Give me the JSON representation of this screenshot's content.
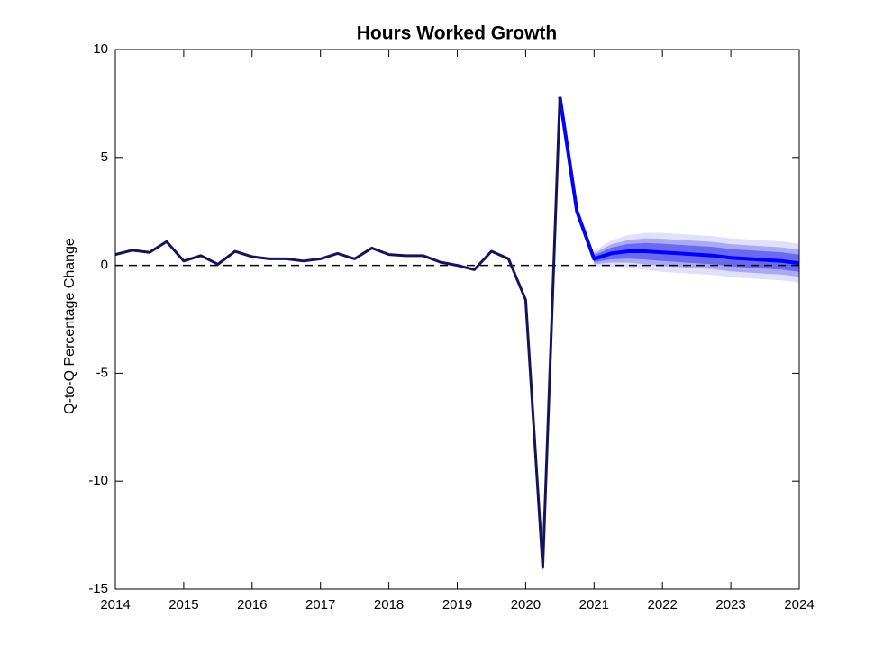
{
  "chart_data": {
    "type": "line",
    "title": "Hours Worked Growth",
    "y_label": "Q-to-Q Percentage Change",
    "xlim": [
      2014,
      2024
    ],
    "xticks": [
      2014,
      2015,
      2016,
      2017,
      2018,
      2019,
      2020,
      2021,
      2022,
      2023,
      2024
    ],
    "ylim": [
      -15,
      10
    ],
    "yticks": [
      -15,
      -10,
      -5,
      0,
      5,
      10
    ],
    "reference_line": {
      "value": 0,
      "style": "dashed",
      "color": "#000000"
    },
    "bands": [
      {
        "color": "#e0e0fb",
        "x": [
          2021,
          2021.25,
          2021.5,
          2021.75,
          2022,
          2022.25,
          2022.5,
          2022.75,
          2023,
          2023.25,
          2023.5,
          2023.75,
          2024
        ],
        "upper": [
          0.65,
          1.15,
          1.4,
          1.5,
          1.5,
          1.45,
          1.4,
          1.35,
          1.25,
          1.2,
          1.15,
          1.1,
          1.0
        ],
        "lower": [
          -0.05,
          -0.05,
          -0.1,
          -0.2,
          -0.3,
          -0.35,
          -0.4,
          -0.45,
          -0.55,
          -0.6,
          -0.65,
          -0.7,
          -0.8
        ]
      },
      {
        "color": "#a9a9f5",
        "x": [
          2021,
          2021.25,
          2021.5,
          2021.75,
          2022,
          2022.25,
          2022.5,
          2022.75,
          2023,
          2023.25,
          2023.5,
          2023.75,
          2024
        ],
        "upper": [
          0.55,
          0.97,
          1.17,
          1.25,
          1.23,
          1.18,
          1.13,
          1.08,
          0.98,
          0.93,
          0.88,
          0.83,
          0.73
        ],
        "lower": [
          0.05,
          0.13,
          0.13,
          0.05,
          -0.03,
          -0.08,
          -0.13,
          -0.18,
          -0.28,
          -0.33,
          -0.38,
          -0.43,
          -0.53
        ]
      },
      {
        "color": "#6a6af0",
        "x": [
          2021,
          2021.25,
          2021.5,
          2021.75,
          2022,
          2022.25,
          2022.5,
          2022.75,
          2023,
          2023.25,
          2023.5,
          2023.75,
          2024
        ],
        "upper": [
          0.46,
          0.82,
          0.99,
          1.03,
          1.0,
          0.95,
          0.9,
          0.85,
          0.75,
          0.7,
          0.65,
          0.6,
          0.5
        ],
        "lower": [
          0.14,
          0.28,
          0.31,
          0.27,
          0.2,
          0.15,
          0.1,
          0.05,
          -0.05,
          -0.1,
          -0.15,
          -0.2,
          -0.3
        ]
      }
    ],
    "series": [
      {
        "color": "#0000ff",
        "width": 4,
        "x": [
          2020.5,
          2020.75,
          2021,
          2021.25,
          2021.5,
          2021.75,
          2022,
          2022.25,
          2022.5,
          2022.75,
          2023,
          2023.25,
          2023.5,
          2023.75,
          2024
        ],
        "values": [
          7.8,
          2.5,
          0.3,
          0.55,
          0.65,
          0.65,
          0.6,
          0.55,
          0.5,
          0.45,
          0.35,
          0.3,
          0.25,
          0.2,
          0.1
        ]
      },
      {
        "color": "#14145a",
        "width": 3,
        "x": [
          2014,
          2014.25,
          2014.5,
          2014.75,
          2015,
          2015.25,
          2015.5,
          2015.75,
          2016,
          2016.25,
          2016.5,
          2016.75,
          2017,
          2017.25,
          2017.5,
          2017.75,
          2018,
          2018.25,
          2018.5,
          2018.75,
          2019,
          2019.25,
          2019.5,
          2019.75,
          2020,
          2020.25,
          2020.5
        ],
        "values": [
          0.5,
          0.7,
          0.6,
          1.1,
          0.2,
          0.45,
          0.05,
          0.65,
          0.4,
          0.3,
          0.3,
          0.2,
          0.3,
          0.55,
          0.3,
          0.8,
          0.5,
          0.45,
          0.45,
          0.15,
          0.0,
          -0.2,
          0.65,
          0.3,
          -1.6,
          -14.0,
          7.8
        ]
      }
    ]
  }
}
